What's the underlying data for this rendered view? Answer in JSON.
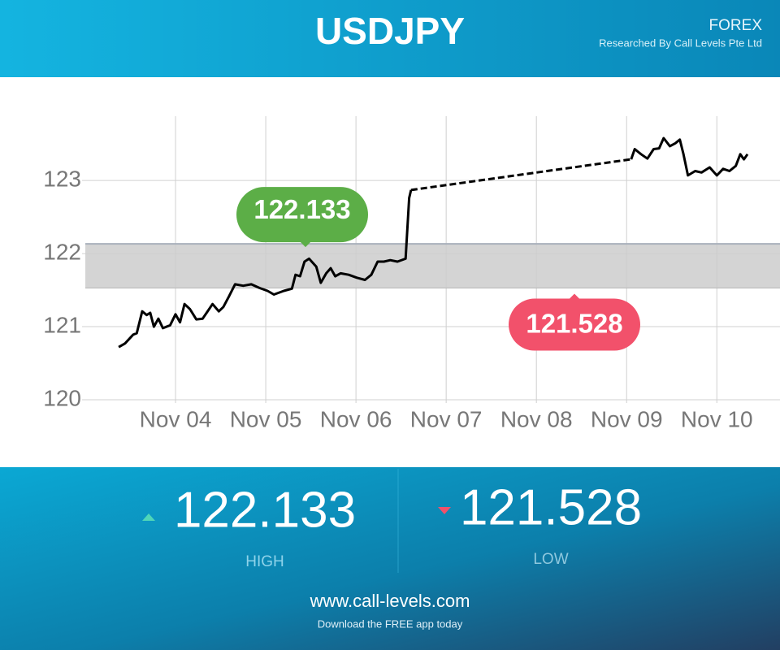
{
  "header": {
    "title": "USDJPY",
    "category": "FOREX",
    "credit": "Researched By Call Levels Pte Ltd"
  },
  "chart_data": {
    "type": "line",
    "x": [
      3.37,
      3.44,
      3.53,
      3.57,
      3.63,
      3.68,
      3.72,
      3.76,
      3.81,
      3.86,
      3.94,
      4.0,
      4.05,
      4.1,
      4.16,
      4.23,
      4.3,
      4.41,
      4.48,
      4.53,
      4.59,
      4.66,
      4.75,
      4.84,
      4.93,
      5.02,
      5.09,
      5.2,
      5.29,
      5.33,
      5.38,
      5.43,
      5.48,
      5.56,
      5.61,
      5.67,
      5.72,
      5.77,
      5.83,
      5.92,
      6.01,
      6.1,
      6.17,
      6.24,
      6.31,
      6.38,
      6.46,
      6.55,
      6.59,
      6.61,
      null,
      9.05,
      9.09,
      9.16,
      9.23,
      9.3,
      9.36,
      9.41,
      9.48,
      9.54,
      9.59,
      9.63,
      9.68,
      9.76,
      9.83,
      9.92,
      10.0,
      10.07,
      10.14,
      10.21,
      10.26,
      10.3,
      10.34
    ],
    "series": [
      {
        "color": "#000000",
        "values": [
          120.72,
          120.77,
          120.89,
          120.91,
          121.21,
          121.16,
          121.19,
          121.0,
          121.11,
          120.98,
          121.02,
          121.17,
          121.06,
          121.31,
          121.24,
          121.1,
          121.11,
          121.31,
          121.21,
          121.27,
          121.41,
          121.58,
          121.56,
          121.58,
          121.53,
          121.49,
          121.44,
          121.49,
          121.52,
          121.71,
          121.69,
          121.89,
          121.93,
          121.82,
          121.6,
          121.73,
          121.8,
          121.69,
          121.73,
          121.71,
          121.67,
          121.64,
          121.71,
          121.89,
          121.89,
          121.91,
          121.89,
          121.93,
          122.76,
          122.87,
          null,
          123.29,
          123.43,
          123.36,
          123.3,
          123.43,
          123.44,
          123.58,
          123.47,
          123.51,
          123.56,
          123.36,
          123.07,
          123.13,
          123.11,
          123.18,
          123.07,
          123.16,
          123.13,
          123.2,
          123.36,
          123.29,
          123.36
        ]
      }
    ],
    "gap_style": "dashed",
    "xlim": [
      3,
      10.7
    ],
    "xticks": [
      {
        "value": 4,
        "label": "Nov 04"
      },
      {
        "value": 5,
        "label": "Nov 05"
      },
      {
        "value": 6,
        "label": "Nov 06"
      },
      {
        "value": 7,
        "label": "Nov 07"
      },
      {
        "value": 8,
        "label": "Nov 08"
      },
      {
        "value": 9,
        "label": "Nov 09"
      },
      {
        "value": 10,
        "label": "Nov 10"
      }
    ],
    "ylim": [
      120,
      123.88
    ],
    "yticks": [
      120,
      121,
      122,
      123
    ],
    "grid": true,
    "band": {
      "high": 122.133,
      "low": 121.528,
      "color": "#cccccc",
      "high_color": "#5cae47",
      "low_color": "#f2516b"
    }
  },
  "footer": {
    "high_label": "HIGH",
    "low_label": "LOW",
    "url": "www.call-levels.com",
    "tagline": "Download the FREE app today"
  }
}
